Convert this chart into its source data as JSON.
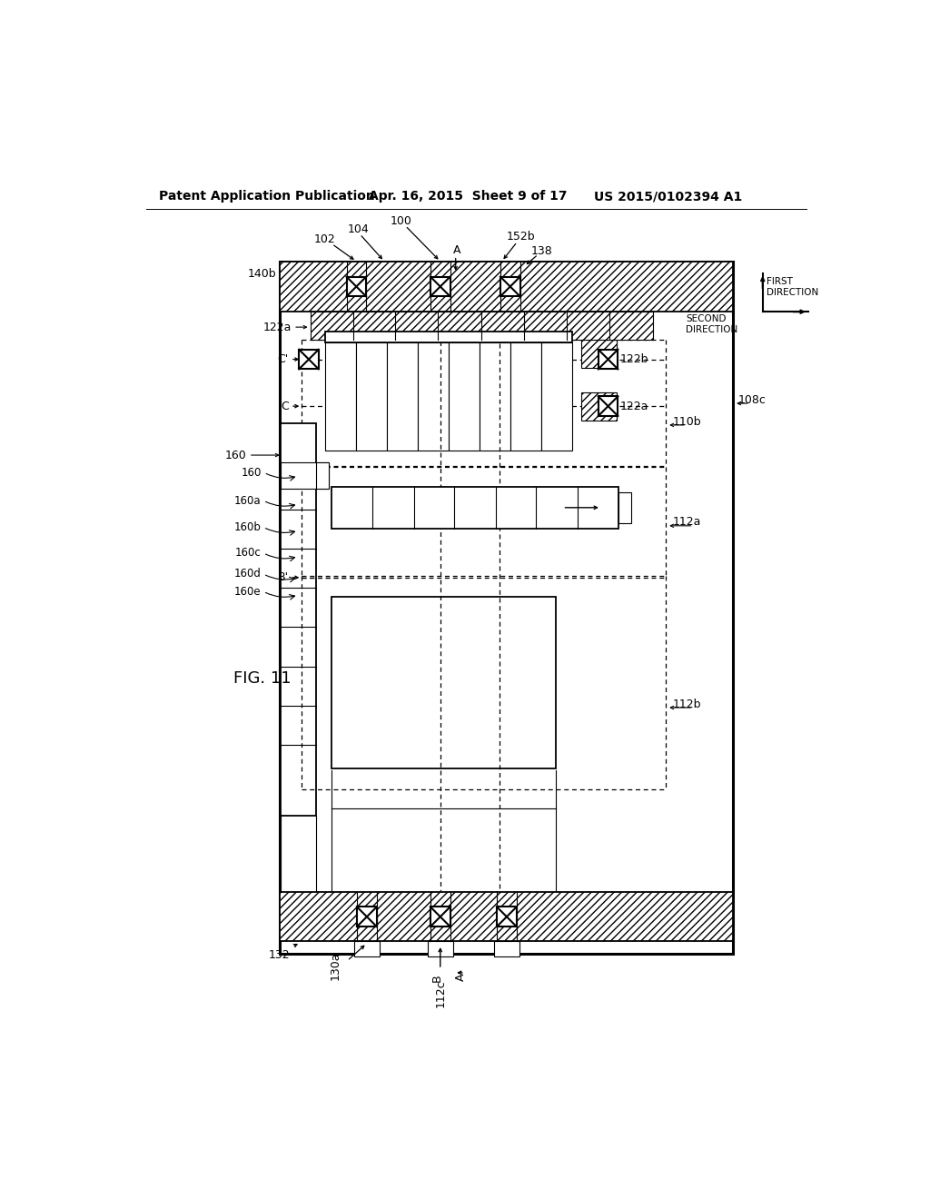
{
  "bg_color": "#ffffff",
  "header_left": "Patent Application Publication",
  "header_mid": "Apr. 16, 2015  Sheet 9 of 17",
  "header_right": "US 2015/0102394 A1",
  "fig_label": "FIG. 11"
}
